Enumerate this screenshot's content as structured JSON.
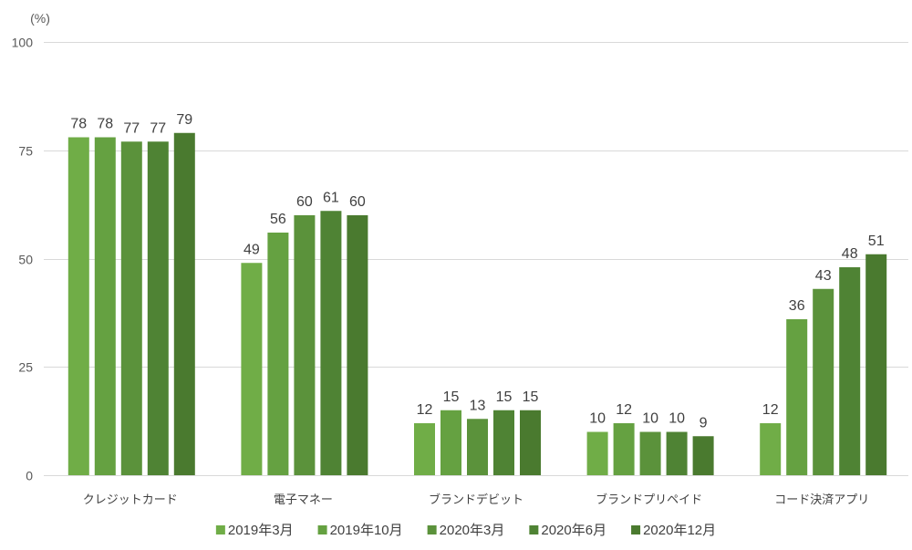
{
  "chart_data": {
    "type": "bar",
    "ylabel": "(%)",
    "ylim": [
      0,
      100
    ],
    "yticks": [
      0,
      25,
      50,
      75,
      100
    ],
    "grid": true,
    "legend_position": "bottom",
    "categories": [
      "クレジットカード",
      "電子マネー",
      "ブランドデビット",
      "ブランドプリペイド",
      "コード決済アプリ"
    ],
    "series": [
      {
        "name": "2019年3月",
        "color": "#70AD47",
        "values": [
          78,
          49,
          12,
          10,
          12
        ]
      },
      {
        "name": "2019年10月",
        "color": "#65A141",
        "values": [
          78,
          56,
          15,
          12,
          36
        ]
      },
      {
        "name": "2020年3月",
        "color": "#5B923B",
        "values": [
          77,
          60,
          13,
          10,
          43
        ]
      },
      {
        "name": "2020年6月",
        "color": "#4F8334",
        "values": [
          77,
          61,
          15,
          10,
          48
        ]
      },
      {
        "name": "2020年12月",
        "color": "#4A7A2F",
        "values": [
          79,
          60,
          15,
          9,
          51
        ]
      }
    ]
  }
}
